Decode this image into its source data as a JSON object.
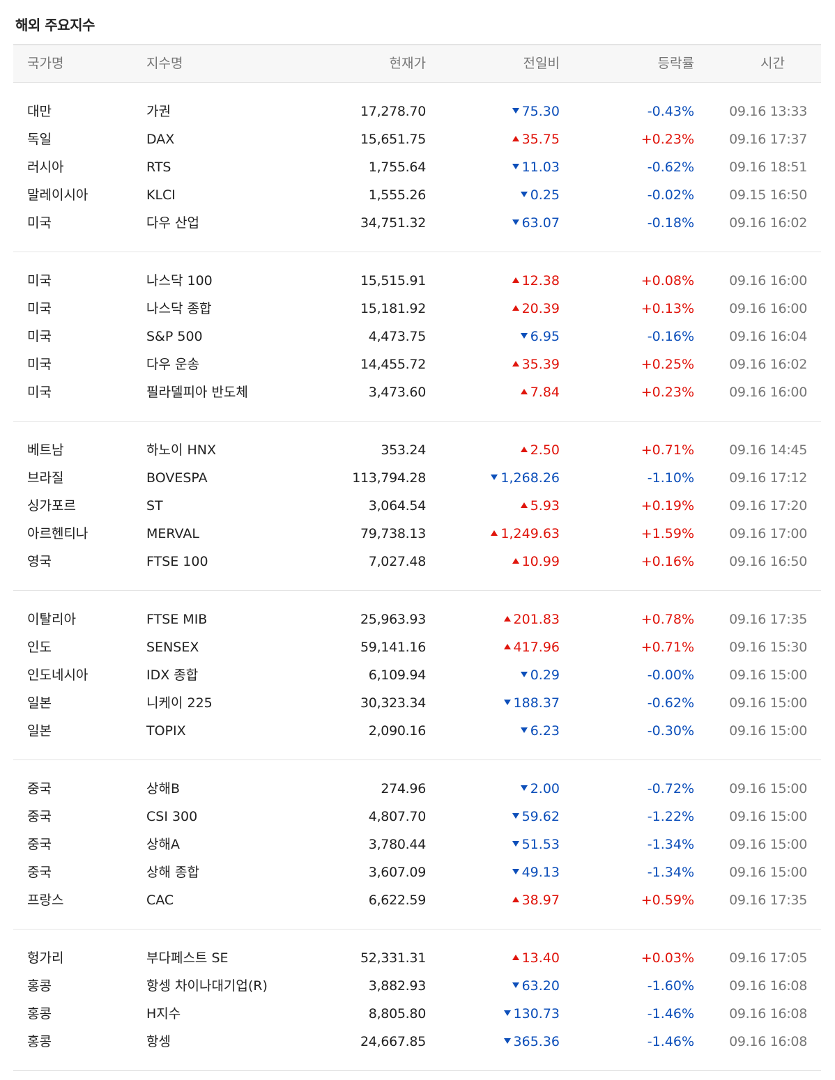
{
  "title": "해외 주요지수",
  "colors": {
    "up": "#e0150c",
    "down": "#0d4fba"
  },
  "headers": {
    "country": "국가명",
    "index_name": "지수명",
    "price": "현재가",
    "change": "전일비",
    "rate": "등락률",
    "time": "시간"
  },
  "groups": [
    {
      "rows": [
        {
          "country": "대만",
          "name": "가권",
          "price": "17,278.70",
          "dir": "down",
          "change": "75.30",
          "rate": "-0.43%",
          "time": "09.16 13:33"
        },
        {
          "country": "독일",
          "name": "DAX",
          "price": "15,651.75",
          "dir": "up",
          "change": "35.75",
          "rate": "+0.23%",
          "time": "09.16 17:37"
        },
        {
          "country": "러시아",
          "name": "RTS",
          "price": "1,755.64",
          "dir": "down",
          "change": "11.03",
          "rate": "-0.62%",
          "time": "09.16 18:51"
        },
        {
          "country": "말레이시아",
          "name": "KLCI",
          "price": "1,555.26",
          "dir": "down",
          "change": "0.25",
          "rate": "-0.02%",
          "time": "09.15 16:50"
        },
        {
          "country": "미국",
          "name": "다우 산업",
          "price": "34,751.32",
          "dir": "down",
          "change": "63.07",
          "rate": "-0.18%",
          "time": "09.16 16:02"
        }
      ]
    },
    {
      "rows": [
        {
          "country": "미국",
          "name": "나스닥 100",
          "price": "15,515.91",
          "dir": "up",
          "change": "12.38",
          "rate": "+0.08%",
          "time": "09.16 16:00"
        },
        {
          "country": "미국",
          "name": "나스닥 종합",
          "price": "15,181.92",
          "dir": "up",
          "change": "20.39",
          "rate": "+0.13%",
          "time": "09.16 16:00"
        },
        {
          "country": "미국",
          "name": "S&P 500",
          "price": "4,473.75",
          "dir": "down",
          "change": "6.95",
          "rate": "-0.16%",
          "time": "09.16 16:04"
        },
        {
          "country": "미국",
          "name": "다우 운송",
          "price": "14,455.72",
          "dir": "up",
          "change": "35.39",
          "rate": "+0.25%",
          "time": "09.16 16:02"
        },
        {
          "country": "미국",
          "name": "필라델피아 반도체",
          "price": "3,473.60",
          "dir": "up",
          "change": "7.84",
          "rate": "+0.23%",
          "time": "09.16 16:00"
        }
      ]
    },
    {
      "rows": [
        {
          "country": "베트남",
          "name": "하노이 HNX",
          "price": "353.24",
          "dir": "up",
          "change": "2.50",
          "rate": "+0.71%",
          "time": "09.16 14:45"
        },
        {
          "country": "브라질",
          "name": "BOVESPA",
          "price": "113,794.28",
          "dir": "down",
          "change": "1,268.26",
          "rate": "-1.10%",
          "time": "09.16 17:12"
        },
        {
          "country": "싱가포르",
          "name": "ST",
          "price": "3,064.54",
          "dir": "up",
          "change": "5.93",
          "rate": "+0.19%",
          "time": "09.16 17:20"
        },
        {
          "country": "아르헨티나",
          "name": "MERVAL",
          "price": "79,738.13",
          "dir": "up",
          "change": "1,249.63",
          "rate": "+1.59%",
          "time": "09.16 17:00"
        },
        {
          "country": "영국",
          "name": "FTSE 100",
          "price": "7,027.48",
          "dir": "up",
          "change": "10.99",
          "rate": "+0.16%",
          "time": "09.16 16:50"
        }
      ]
    },
    {
      "rows": [
        {
          "country": "이탈리아",
          "name": "FTSE MIB",
          "price": "25,963.93",
          "dir": "up",
          "change": "201.83",
          "rate": "+0.78%",
          "time": "09.16 17:35"
        },
        {
          "country": "인도",
          "name": "SENSEX",
          "price": "59,141.16",
          "dir": "up",
          "change": "417.96",
          "rate": "+0.71%",
          "time": "09.16 15:30"
        },
        {
          "country": "인도네시아",
          "name": "IDX 종합",
          "price": "6,109.94",
          "dir": "down",
          "change": "0.29",
          "rate": "-0.00%",
          "time": "09.16 15:00"
        },
        {
          "country": "일본",
          "name": "니케이 225",
          "price": "30,323.34",
          "dir": "down",
          "change": "188.37",
          "rate": "-0.62%",
          "time": "09.16 15:00"
        },
        {
          "country": "일본",
          "name": "TOPIX",
          "price": "2,090.16",
          "dir": "down",
          "change": "6.23",
          "rate": "-0.30%",
          "time": "09.16 15:00"
        }
      ]
    },
    {
      "rows": [
        {
          "country": "중국",
          "name": "상해B",
          "price": "274.96",
          "dir": "down",
          "change": "2.00",
          "rate": "-0.72%",
          "time": "09.16 15:00"
        },
        {
          "country": "중국",
          "name": "CSI 300",
          "price": "4,807.70",
          "dir": "down",
          "change": "59.62",
          "rate": "-1.22%",
          "time": "09.16 15:00"
        },
        {
          "country": "중국",
          "name": "상해A",
          "price": "3,780.44",
          "dir": "down",
          "change": "51.53",
          "rate": "-1.34%",
          "time": "09.16 15:00"
        },
        {
          "country": "중국",
          "name": "상해 종합",
          "price": "3,607.09",
          "dir": "down",
          "change": "49.13",
          "rate": "-1.34%",
          "time": "09.16 15:00"
        },
        {
          "country": "프랑스",
          "name": "CAC",
          "price": "6,622.59",
          "dir": "up",
          "change": "38.97",
          "rate": "+0.59%",
          "time": "09.16 17:35"
        }
      ]
    },
    {
      "rows": [
        {
          "country": "헝가리",
          "name": "부다페스트 SE",
          "price": "52,331.31",
          "dir": "up",
          "change": "13.40",
          "rate": "+0.03%",
          "time": "09.16 17:05"
        },
        {
          "country": "홍콩",
          "name": "항셍 차이나대기업(R)",
          "price": "3,882.93",
          "dir": "down",
          "change": "63.20",
          "rate": "-1.60%",
          "time": "09.16 16:08"
        },
        {
          "country": "홍콩",
          "name": "H지수",
          "price": "8,805.80",
          "dir": "down",
          "change": "130.73",
          "rate": "-1.46%",
          "time": "09.16 16:08"
        },
        {
          "country": "홍콩",
          "name": "항셍",
          "price": "24,667.85",
          "dir": "down",
          "change": "365.36",
          "rate": "-1.46%",
          "time": "09.16 16:08"
        }
      ]
    }
  ]
}
